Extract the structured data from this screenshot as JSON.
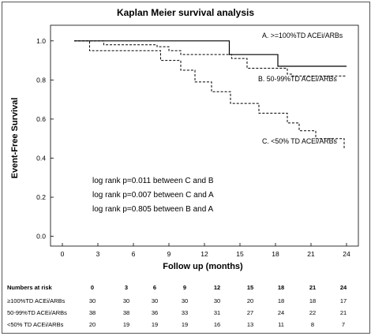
{
  "chart_data": {
    "type": "line",
    "title": "Kaplan Meier survival analysis",
    "xlabel": "Follow up (months)",
    "ylabel": "Event-Free Survival",
    "xlim": [
      -1,
      25
    ],
    "ylim": [
      -0.05,
      1.08
    ],
    "x_ticks": [
      0,
      3,
      6,
      9,
      12,
      15,
      18,
      21,
      24
    ],
    "y_ticks": [
      0.0,
      0.2,
      0.4,
      0.6,
      0.8,
      1.0
    ],
    "x_tick_labels": [
      "0",
      "3",
      "6",
      "9",
      "12",
      "15",
      "18",
      "21",
      "24"
    ],
    "y_tick_labels": [
      "0.0",
      "0.2",
      "0.4",
      "0.6",
      "0.8",
      "1.0"
    ],
    "grid": false,
    "series": [
      {
        "name": "A. >=100%TD ACEi/ARBs",
        "style": "solid",
        "color": "#000000",
        "steps": [
          [
            1,
            1.0
          ],
          [
            14.1,
            0.93
          ],
          [
            18.2,
            0.87
          ],
          [
            24,
            0.87
          ]
        ]
      },
      {
        "name": "B. 50-99%TD ACEi/ARBs",
        "style": "dashed",
        "color": "#000000",
        "steps": [
          [
            1,
            1.0
          ],
          [
            3.5,
            0.98
          ],
          [
            8,
            0.97
          ],
          [
            9,
            0.95
          ],
          [
            10,
            0.93
          ],
          [
            14.3,
            0.91
          ],
          [
            15.6,
            0.86
          ],
          [
            19,
            0.83
          ],
          [
            19.4,
            0.82
          ],
          [
            24,
            0.82
          ]
        ]
      },
      {
        "name": "C. <50% TD ACEi/ARBs",
        "style": "dashed",
        "color": "#000000",
        "steps": [
          [
            1,
            1.0
          ],
          [
            2.3,
            0.95
          ],
          [
            8.3,
            0.9
          ],
          [
            10,
            0.85
          ],
          [
            11.2,
            0.79
          ],
          [
            12.6,
            0.74
          ],
          [
            14.2,
            0.68
          ],
          [
            16.6,
            0.63
          ],
          [
            19,
            0.58
          ],
          [
            20,
            0.54
          ],
          [
            21.4,
            0.5
          ],
          [
            23.8,
            0.45
          ]
        ]
      }
    ],
    "annotations": [
      "log rank p=0.011 between C and B",
      "log rank p=0.007 between C and A",
      "log rank p=0.805 between B and A"
    ]
  },
  "risk_table": {
    "header_label": "Numbers at risk",
    "times": [
      "0",
      "3",
      "6",
      "9",
      "12",
      "15",
      "18",
      "21",
      "24"
    ],
    "rows": [
      {
        "label": "≥100%TD ACEi/ARBs",
        "values": [
          "30",
          "30",
          "30",
          "30",
          "30",
          "20",
          "18",
          "18",
          "17"
        ]
      },
      {
        "label": "50-99%TD ACEi/ARBs",
        "values": [
          "38",
          "38",
          "36",
          "33",
          "31",
          "27",
          "24",
          "22",
          "21"
        ]
      },
      {
        "label": "<50% TD ACEi/ARBs",
        "values": [
          "20",
          "19",
          "19",
          "19",
          "16",
          "13",
          "11",
          "8",
          "7"
        ]
      }
    ]
  }
}
